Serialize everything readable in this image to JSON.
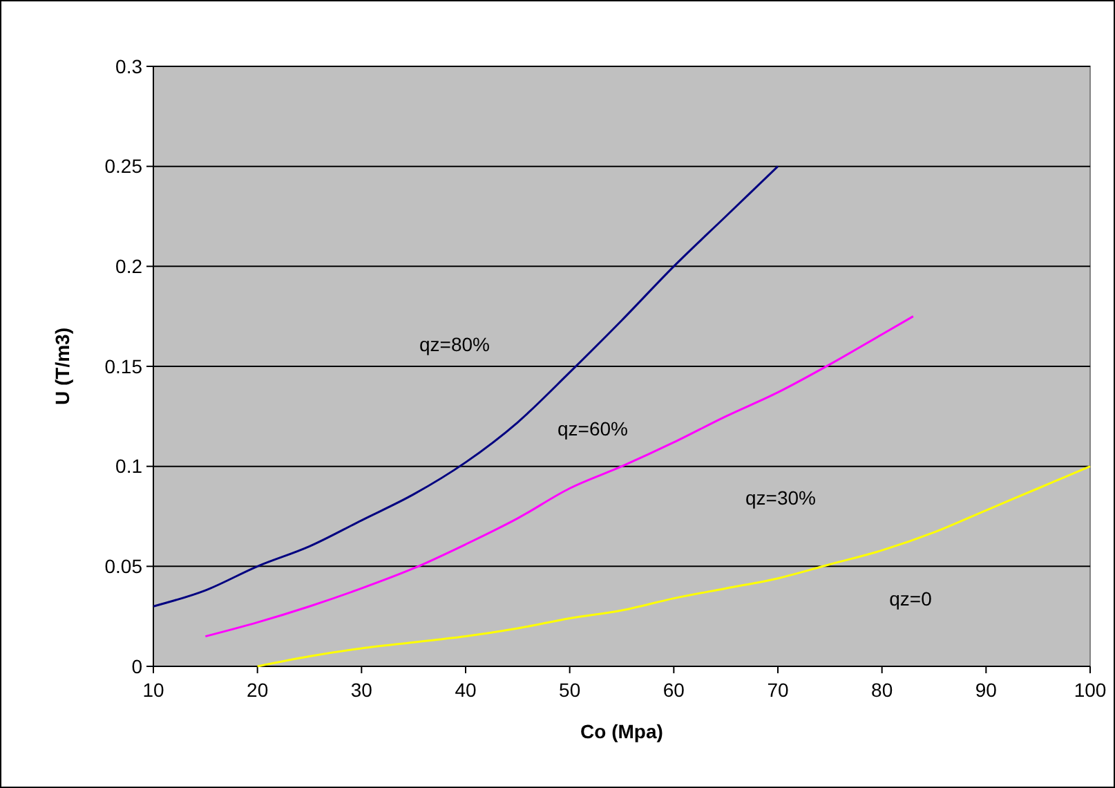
{
  "chart_data": {
    "type": "line",
    "xlabel": "Co (Mpa)",
    "ylabel": "U (T/m3)",
    "xlim": [
      10,
      100
    ],
    "xticks": [
      10,
      20,
      30,
      40,
      50,
      60,
      70,
      80,
      90,
      100
    ],
    "ylim": [
      0,
      0.3
    ],
    "yticks": [
      0,
      0.05,
      0.1,
      0.15,
      0.2,
      0.25,
      0.3
    ],
    "grid": "y",
    "marker": "none",
    "line_style": "solid",
    "series": [
      {
        "color": "#000080",
        "x": [
          10,
          15,
          20,
          25,
          30,
          35,
          40,
          45,
          50,
          55,
          60,
          65,
          70
        ],
        "values": [
          0.03,
          0.038,
          0.05,
          0.06,
          0.073,
          0.086,
          0.102,
          0.122,
          0.147,
          0.173,
          0.2,
          0.225,
          0.25
        ]
      },
      {
        "color": "#ff00ff",
        "x": [
          15,
          20,
          25,
          30,
          35,
          40,
          45,
          50,
          55,
          60,
          65,
          70,
          75,
          80,
          83
        ],
        "values": [
          0.015,
          0.022,
          0.03,
          0.039,
          0.049,
          0.061,
          0.074,
          0.089,
          0.1,
          0.112,
          0.125,
          0.137,
          0.151,
          0.166,
          0.175
        ]
      },
      {
        "color": "#ffff00",
        "x": [
          20,
          25,
          30,
          35,
          40,
          45,
          50,
          55,
          60,
          65,
          70,
          75,
          80,
          85,
          90,
          95,
          100
        ],
        "values": [
          0,
          0.005,
          0.009,
          0.012,
          0.015,
          0.019,
          0.024,
          0.028,
          0.034,
          0.039,
          0.044,
          0.051,
          0.058,
          0.067,
          0.078,
          0.089,
          0.1
        ]
      }
    ],
    "annotations": [
      "qz=80%",
      "qz=60%",
      "qz=30%",
      "qz=0"
    ]
  }
}
